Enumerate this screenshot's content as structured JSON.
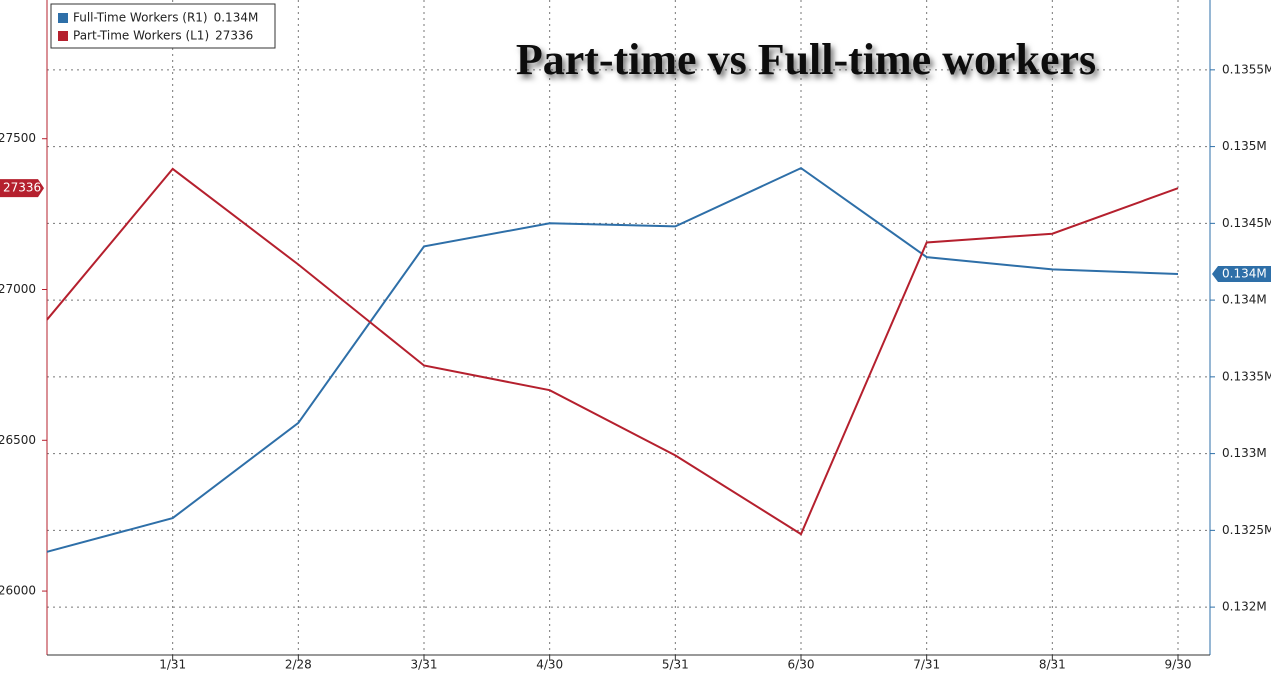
{
  "chart_data": {
    "type": "line",
    "title": "Part-time vs Full-time workers",
    "categories": [
      null,
      "1/31",
      "2/28",
      "3/31",
      "4/30",
      "5/31",
      "6/30",
      "7/31",
      "8/31",
      "9/30"
    ],
    "series": [
      {
        "name": "Full-Time Workers (R1)",
        "color": "#2e6fa8",
        "axis": "y2",
        "values": [
          0.13236,
          0.13258,
          0.1332,
          0.13435,
          0.1345,
          0.13448,
          0.13486,
          0.13428,
          0.1342,
          0.13417
        ],
        "value_labels": [
          null,
          null,
          null,
          null,
          null,
          null,
          null,
          null,
          null,
          "0.134M"
        ]
      },
      {
        "name": "Part-Time Workers (L1)",
        "color": "#b5202e",
        "axis": "y",
        "values": [
          26900,
          27400,
          27083,
          26748,
          26666,
          26450,
          26189,
          27156,
          27185,
          27336
        ],
        "value_labels": [
          null,
          null,
          null,
          null,
          null,
          null,
          null,
          null,
          null,
          "27336"
        ]
      }
    ],
    "ylim": [
      25788,
      27960
    ],
    "yticks": [
      26000,
      26500,
      27000,
      27500
    ],
    "y2lim": [
      0.131688,
      0.135955
    ],
    "y2ticks": [
      {
        "value": 0.132,
        "label": "0.132M"
      },
      {
        "value": 0.1325,
        "label": "0.1325M"
      },
      {
        "value": 0.133,
        "label": "0.133M"
      },
      {
        "value": 0.1335,
        "label": "0.1335M"
      },
      {
        "value": 0.134,
        "label": "0.134M"
      },
      {
        "value": 0.1345,
        "label": "0.1345M"
      },
      {
        "value": 0.135,
        "label": "0.135M"
      },
      {
        "value": 0.1355,
        "label": "0.1355M"
      }
    ],
    "grid": true
  }
}
